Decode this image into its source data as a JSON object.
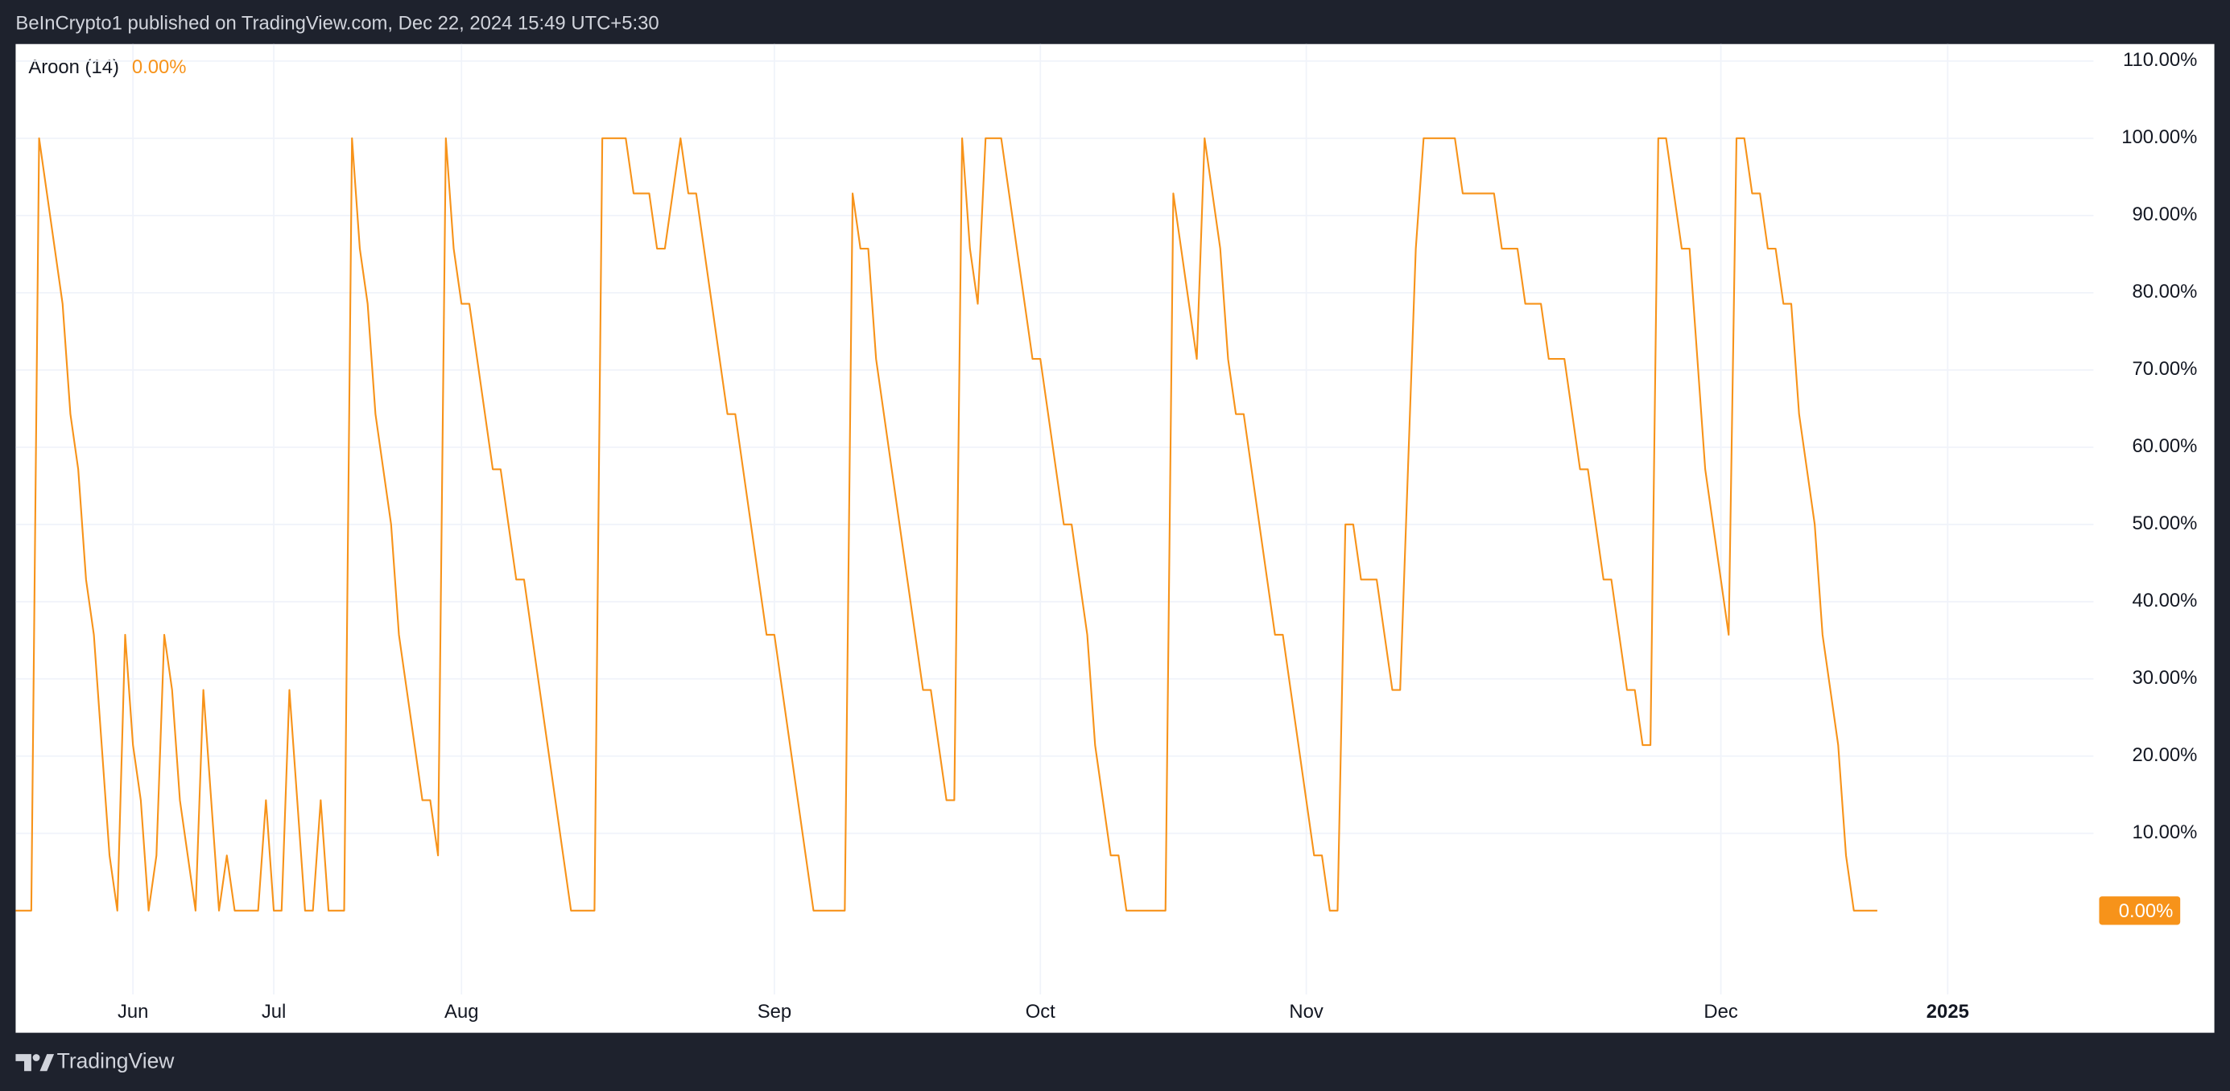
{
  "header": {
    "text": "BeInCrypto1 published on TradingView.com, Dec 22, 2024 15:49 UTC+5:30"
  },
  "footer": {
    "brand": "TradingView"
  },
  "chart_data": {
    "type": "line",
    "title": "Aroon (14)",
    "last_value_label": "0.00%",
    "color": "#f7931a",
    "grid": true,
    "ylim": [
      -10.85,
      112.2
    ],
    "yticks": [
      {
        "value": 10,
        "label": "10.00%"
      },
      {
        "value": 20,
        "label": "20.00%"
      },
      {
        "value": 30,
        "label": "30.00%"
      },
      {
        "value": 40,
        "label": "40.00%"
      },
      {
        "value": 50,
        "label": "50.00%"
      },
      {
        "value": 60,
        "label": "60.00%"
      },
      {
        "value": 70,
        "label": "70.00%"
      },
      {
        "value": 80,
        "label": "80.00%"
      },
      {
        "value": 90,
        "label": "90.00%"
      },
      {
        "value": 100,
        "label": "100.00%"
      },
      {
        "value": 110,
        "label": "110.00%"
      }
    ],
    "categories": [
      null,
      null,
      null,
      null,
      null,
      null,
      null,
      null,
      null,
      null,
      null,
      null,
      null,
      null,
      null,
      "Jun",
      null,
      null,
      null,
      null,
      null,
      null,
      null,
      null,
      null,
      null,
      null,
      null,
      null,
      null,
      null,
      null,
      null,
      "Jul",
      null,
      null,
      null,
      null,
      null,
      null,
      null,
      null,
      null,
      null,
      null,
      null,
      null,
      null,
      null,
      null,
      null,
      null,
      null,
      null,
      null,
      null,
      null,
      "Aug",
      null,
      null,
      null,
      null,
      null,
      null,
      null,
      null,
      null,
      null,
      null,
      null,
      null,
      null,
      null,
      null,
      null,
      null,
      null,
      null,
      null,
      null,
      null,
      null,
      null,
      null,
      null,
      null,
      null,
      null,
      null,
      null,
      null,
      null,
      null,
      null,
      null,
      null,
      null,
      "Sep",
      null,
      null,
      null,
      null,
      null,
      null,
      null,
      null,
      null,
      null,
      null,
      null,
      null,
      null,
      null,
      null,
      null,
      null,
      null,
      null,
      null,
      null,
      null,
      null,
      null,
      null,
      null,
      null,
      null,
      null,
      null,
      null,
      null,
      "Oct",
      null,
      null,
      null,
      null,
      null,
      null,
      null,
      null,
      null,
      null,
      null,
      null,
      null,
      null,
      null,
      null,
      null,
      null,
      null,
      null,
      null,
      null,
      null,
      null,
      null,
      null,
      null,
      null,
      null,
      null,
      null,
      null,
      null,
      "Nov",
      null,
      null,
      null,
      null,
      null,
      null,
      null,
      null,
      null,
      null,
      null,
      null,
      null,
      null,
      null,
      null,
      null,
      null,
      null,
      null,
      null,
      null,
      null,
      null,
      null,
      null,
      null,
      null,
      null,
      null,
      null,
      null,
      null,
      null,
      null,
      null,
      null,
      null,
      null,
      null,
      null,
      null,
      null,
      null,
      null,
      null,
      null,
      null,
      null,
      null,
      null,
      null,
      "Dec",
      null,
      null,
      null,
      null,
      null,
      null,
      null,
      null,
      null,
      null,
      null,
      null,
      null,
      null,
      null,
      null,
      null,
      null,
      null,
      null,
      null,
      null,
      null,
      null,
      null,
      null,
      null,
      null,
      "2025",
      null,
      null,
      null,
      null,
      null,
      null,
      null,
      null,
      null,
      null,
      null,
      null,
      null,
      null,
      null,
      null,
      null,
      null
    ],
    "values": [
      0,
      0,
      0,
      100,
      92.86,
      85.71,
      78.57,
      64.29,
      57.14,
      42.86,
      35.71,
      21.43,
      7.14,
      0,
      35.71,
      21.43,
      14.29,
      0,
      7.14,
      35.71,
      28.57,
      14.29,
      7.14,
      0,
      28.57,
      14.29,
      0,
      7.14,
      0,
      0,
      0,
      0,
      14.29,
      0,
      0,
      28.57,
      14.29,
      0,
      0,
      14.29,
      0,
      0,
      0,
      100,
      85.71,
      78.57,
      64.29,
      57.14,
      50,
      35.71,
      28.57,
      21.43,
      14.29,
      14.29,
      7.14,
      100,
      85.71,
      78.57,
      78.57,
      71.43,
      64.29,
      57.14,
      57.14,
      50,
      42.86,
      42.86,
      35.71,
      28.57,
      21.43,
      14.29,
      7.14,
      0,
      0,
      0,
      0,
      100,
      100,
      100,
      100,
      92.86,
      92.86,
      92.86,
      85.71,
      85.71,
      92.86,
      100,
      92.86,
      92.86,
      85.71,
      78.57,
      71.43,
      64.29,
      64.29,
      57.14,
      50,
      42.86,
      35.71,
      35.71,
      28.57,
      21.43,
      14.29,
      7.14,
      0,
      0,
      0,
      0,
      0,
      92.86,
      85.71,
      85.71,
      71.43,
      64.29,
      57.14,
      50,
      42.86,
      35.71,
      28.57,
      28.57,
      21.43,
      14.29,
      14.29,
      100,
      85.71,
      78.57,
      100,
      100,
      100,
      92.86,
      85.71,
      78.57,
      71.43,
      71.43,
      64.29,
      57.14,
      50,
      50,
      42.86,
      35.71,
      21.43,
      14.29,
      7.14,
      7.14,
      0,
      0,
      0,
      0,
      0,
      0,
      92.86,
      85.71,
      78.57,
      71.43,
      100,
      92.86,
      85.71,
      71.43,
      64.29,
      64.29,
      57.14,
      50,
      42.86,
      35.71,
      35.71,
      28.57,
      21.43,
      14.29,
      7.14,
      7.14,
      0,
      0,
      50,
      50,
      42.86,
      42.86,
      42.86,
      35.71,
      28.57,
      28.57,
      57.14,
      85.71,
      100,
      100,
      100,
      100,
      100,
      92.86,
      92.86,
      92.86,
      92.86,
      92.86,
      85.71,
      85.71,
      85.71,
      78.57,
      78.57,
      78.57,
      71.43,
      71.43,
      71.43,
      64.29,
      57.14,
      57.14,
      50,
      42.86,
      42.86,
      35.71,
      28.57,
      28.57,
      21.43,
      21.43,
      100,
      100,
      92.86,
      85.71,
      85.71,
      71.43,
      57.14,
      50,
      42.86,
      35.71,
      100,
      100,
      92.86,
      92.86,
      85.71,
      85.71,
      78.57,
      78.57,
      64.29,
      57.14,
      50,
      35.71,
      28.57,
      21.43,
      7.14,
      0,
      0,
      0,
      0,
      null,
      null,
      null,
      null,
      null,
      null,
      null,
      null,
      null,
      null,
      null,
      null,
      null,
      null,
      null,
      null,
      null,
      null,
      null,
      null,
      null,
      null,
      null,
      null,
      null,
      null,
      null
    ]
  }
}
